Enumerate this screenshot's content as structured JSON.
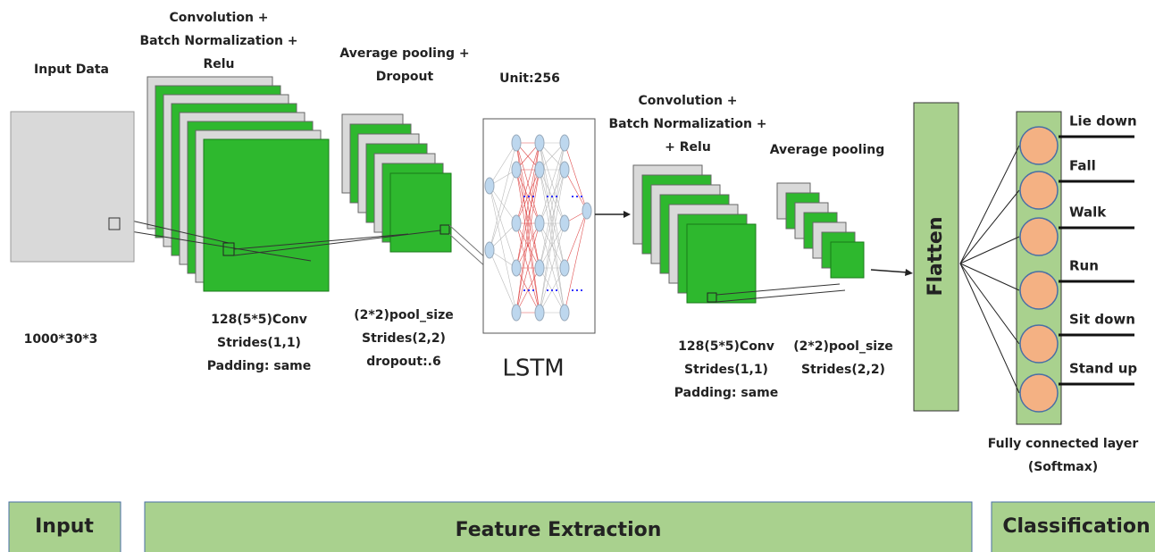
{
  "input": {
    "title": "Input Data",
    "dims": "1000*30*3"
  },
  "conv1": {
    "title_lines": [
      "Convolution +",
      "Batch Normalization +",
      "Relu"
    ],
    "params": [
      "128(5*5)Conv",
      "Strides(1,1)",
      "Padding: same"
    ]
  },
  "pool1": {
    "title_lines": [
      "Average pooling +",
      "Dropout"
    ],
    "params": [
      "(2*2)pool_size",
      "Strides(2,2)",
      "dropout:.6"
    ]
  },
  "lstm": {
    "units": "Unit:256",
    "label": "LSTM"
  },
  "conv2": {
    "title_lines": [
      "Convolution +",
      "Batch Normalization +",
      "+ Relu"
    ],
    "params": [
      "128(5*5)Conv",
      "Strides(1,1)",
      "Padding: same"
    ]
  },
  "pool2": {
    "title": "Average pooling",
    "params": [
      "(2*2)pool_size",
      "Strides(2,2)"
    ]
  },
  "flatten": "Flatten",
  "classes": [
    "Lie down",
    "Fall",
    "Walk",
    "Run",
    "Sit down",
    "Stand up"
  ],
  "fc": {
    "lines": [
      "Fully connected layer",
      "(Softmax)"
    ]
  },
  "stages": [
    "Input",
    "Feature Extraction",
    "Classification"
  ]
}
